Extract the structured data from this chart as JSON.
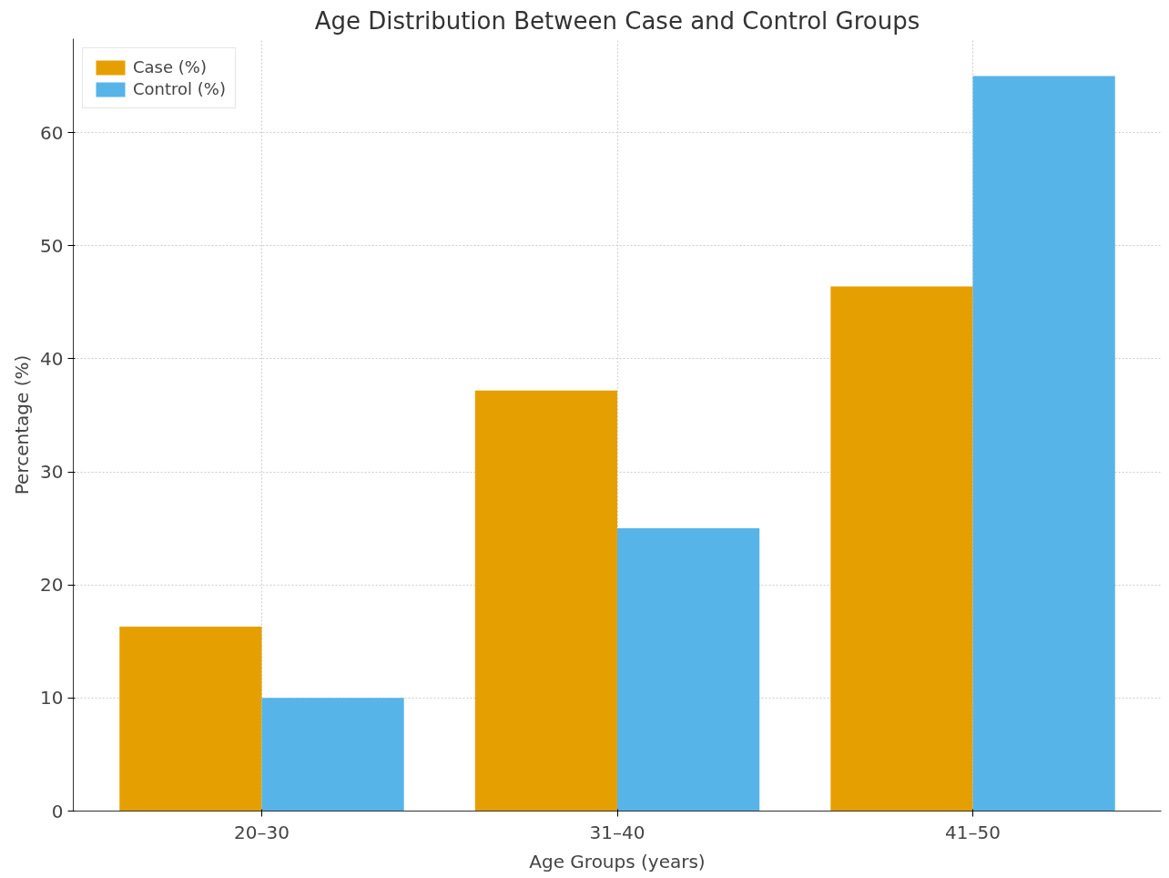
{
  "chart_data": {
    "type": "bar",
    "title": "Age Distribution Between Case and Control Groups",
    "xlabel": "Age Groups (years)",
    "ylabel": "Percentage (%)",
    "categories": [
      "20–30",
      "31–40",
      "41–50"
    ],
    "series": [
      {
        "name": "Case (%)",
        "color": "#e69f00",
        "values": [
          16.3,
          37.2,
          46.4
        ]
      },
      {
        "name": "Control (%)",
        "color": "#56b4e9",
        "values": [
          10,
          25,
          65
        ]
      }
    ],
    "ylim": [
      0,
      68.3
    ],
    "yticks": [
      0,
      10,
      20,
      30,
      40,
      50,
      60
    ],
    "grid": true,
    "legend": "top left"
  }
}
